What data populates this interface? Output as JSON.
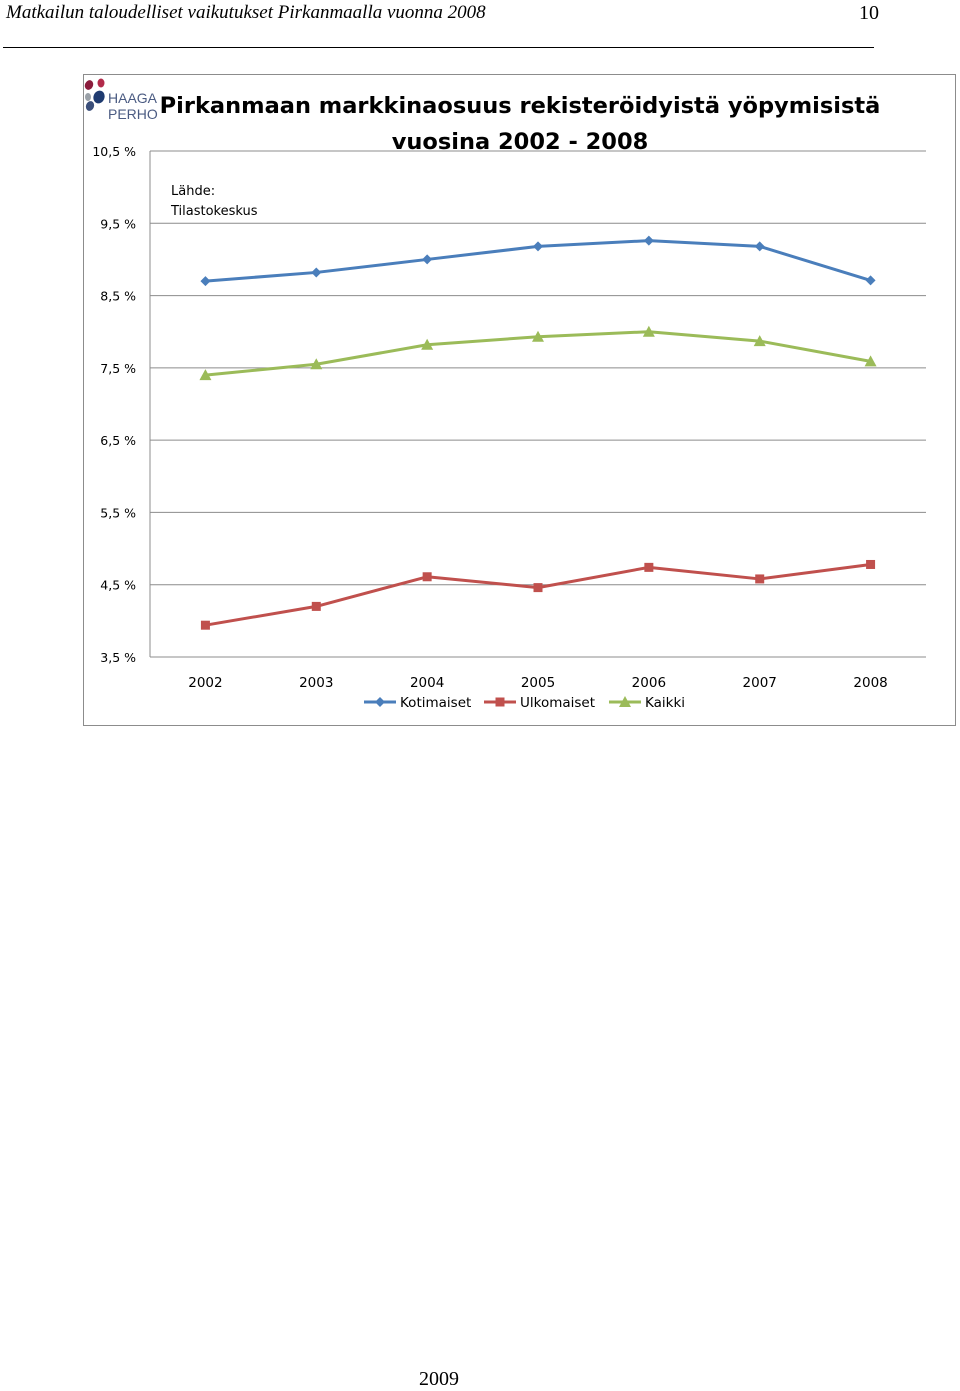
{
  "document": {
    "title": "Matkailun taloudelliset vaikutukset Pirkanmaalla vuonna 2008",
    "page_number": "10",
    "footer_year": "2009"
  },
  "logo": {
    "line1": "HAAGA",
    "line2": "PERHO",
    "colors": [
      "#8b1c3c",
      "#1f3b70",
      "#9aa1a8",
      "#3b4f7a",
      "#b22a4a"
    ]
  },
  "chart_data": {
    "type": "line",
    "title_line1": "Pirkanmaan markkinaosuus rekisteröidyistä yöpymisistä",
    "title_line2": "vuosina 2002 - 2008",
    "source_line1": "Lähde:",
    "source_line2": "Tilastokeskus",
    "categories": [
      "2002",
      "2003",
      "2004",
      "2005",
      "2006",
      "2007",
      "2008"
    ],
    "ylim": [
      3.5,
      10.5
    ],
    "yticks": [
      10.5,
      9.5,
      8.5,
      7.5,
      6.5,
      5.5,
      4.5,
      3.5
    ],
    "ytick_labels": [
      "10,5 %",
      "9,5 %",
      "8,5 %",
      "7,5 %",
      "6,5 %",
      "5,5 %",
      "4,5 %",
      "3,5 %"
    ],
    "grid": "horizontal",
    "legend_position": "bottom",
    "series": [
      {
        "name": "Kotimaiset",
        "marker": "diamond",
        "color": "#4a7ebb",
        "values": [
          8.7,
          8.82,
          9.0,
          9.18,
          9.26,
          9.18,
          8.71
        ]
      },
      {
        "name": "Ulkomaiset",
        "marker": "square",
        "color": "#c0504d",
        "values": [
          3.94,
          4.2,
          4.61,
          4.46,
          4.74,
          4.58,
          4.78
        ]
      },
      {
        "name": "Kaikki",
        "marker": "triangle",
        "color": "#9bbb59",
        "values": [
          7.4,
          7.55,
          7.82,
          7.93,
          8.0,
          7.87,
          7.59
        ]
      }
    ]
  }
}
